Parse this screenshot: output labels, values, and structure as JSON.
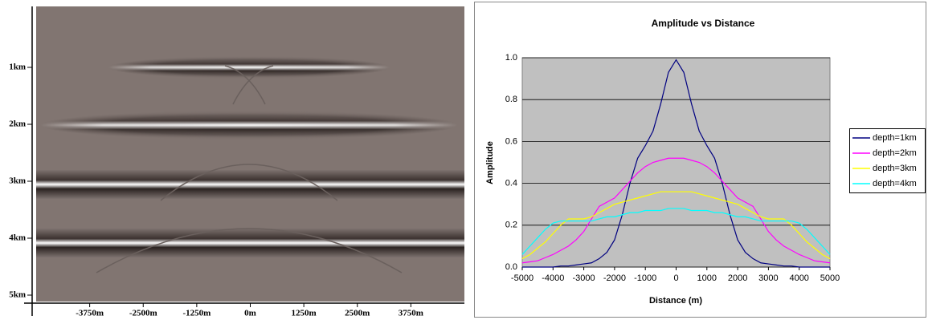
{
  "chart_data": [
    {
      "type": "image",
      "ylim": [
        0,
        5
      ],
      "yticks": [
        {
          "value": 1,
          "label": "1km"
        },
        {
          "value": 2,
          "label": "2km"
        },
        {
          "value": 3,
          "label": "3km"
        },
        {
          "value": 4,
          "label": "4km"
        },
        {
          "value": 5,
          "label": "5km"
        }
      ],
      "xlim": [
        -5000,
        5000
      ],
      "xticks": [
        {
          "value": -3750,
          "label": "-3750m"
        },
        {
          "value": -2500,
          "label": "-2500m"
        },
        {
          "value": -1250,
          "label": "-1250m"
        },
        {
          "value": 0,
          "label": "0m"
        },
        {
          "value": 1250,
          "label": "1250m"
        },
        {
          "value": 2500,
          "label": "2500m"
        },
        {
          "value": 3750,
          "label": "3750m"
        }
      ]
    },
    {
      "type": "line",
      "title": "Amplitude vs Distance",
      "x_label": "Distance (m)",
      "y_label": "Amplitude",
      "xlim": [
        -5000,
        5000
      ],
      "xticks": [
        -5000,
        -4000,
        -3000,
        -2000,
        -1000,
        0,
        1000,
        2000,
        3000,
        4000,
        5000
      ],
      "ylim": [
        0,
        1
      ],
      "yticks": [
        {
          "value": 0,
          "label": "0.0"
        },
        0.2,
        0.4,
        0.6,
        0.8,
        {
          "value": 1,
          "label": "1.0"
        }
      ],
      "grid": true,
      "legend": "right",
      "x": [
        -5000,
        -4750,
        -4500,
        -4250,
        -4000,
        -3750,
        -3500,
        -3250,
        -3000,
        -2750,
        -2500,
        -2250,
        -2000,
        -1750,
        -1500,
        -1250,
        -1000,
        -750,
        -500,
        -250,
        0,
        250,
        500,
        750,
        1000,
        1250,
        1500,
        1750,
        2000,
        2250,
        2500,
        2750,
        3000,
        3250,
        3500,
        3750,
        4000,
        4250,
        4500,
        4750,
        5000
      ],
      "series": [
        {
          "name": "depth=1km",
          "color": "#000080",
          "values": [
            0,
            0,
            0,
            0,
            0,
            0.005,
            0.005,
            0.01,
            0.015,
            0.02,
            0.04,
            0.07,
            0.13,
            0.25,
            0.4,
            0.52,
            0.58,
            0.65,
            0.78,
            0.93,
            0.99,
            0.93,
            0.78,
            0.65,
            0.58,
            0.52,
            0.4,
            0.25,
            0.13,
            0.07,
            0.04,
            0.02,
            0.015,
            0.01,
            0.005,
            0.005,
            0,
            0,
            0,
            0,
            0
          ]
        },
        {
          "name": "depth=2km",
          "color": "#ff00ff",
          "values": [
            0.02,
            0.025,
            0.03,
            0.045,
            0.06,
            0.08,
            0.1,
            0.13,
            0.17,
            0.23,
            0.29,
            0.31,
            0.33,
            0.37,
            0.41,
            0.45,
            0.48,
            0.5,
            0.51,
            0.52,
            0.52,
            0.52,
            0.51,
            0.5,
            0.48,
            0.45,
            0.41,
            0.37,
            0.33,
            0.31,
            0.29,
            0.23,
            0.17,
            0.13,
            0.1,
            0.08,
            0.06,
            0.045,
            0.03,
            0.025,
            0.02
          ]
        },
        {
          "name": "depth=3km",
          "color": "#ffff00",
          "values": [
            0.04,
            0.06,
            0.09,
            0.12,
            0.16,
            0.2,
            0.23,
            0.23,
            0.23,
            0.24,
            0.26,
            0.28,
            0.3,
            0.31,
            0.32,
            0.33,
            0.34,
            0.35,
            0.36,
            0.36,
            0.36,
            0.36,
            0.36,
            0.35,
            0.34,
            0.33,
            0.32,
            0.31,
            0.3,
            0.28,
            0.26,
            0.24,
            0.23,
            0.23,
            0.23,
            0.2,
            0.16,
            0.12,
            0.09,
            0.06,
            0.04
          ]
        },
        {
          "name": "depth=4km",
          "color": "#00ffff",
          "values": [
            0.06,
            0.1,
            0.14,
            0.18,
            0.21,
            0.22,
            0.22,
            0.22,
            0.22,
            0.22,
            0.23,
            0.24,
            0.24,
            0.25,
            0.26,
            0.26,
            0.27,
            0.27,
            0.27,
            0.28,
            0.28,
            0.28,
            0.27,
            0.27,
            0.27,
            0.26,
            0.26,
            0.25,
            0.24,
            0.24,
            0.23,
            0.22,
            0.22,
            0.22,
            0.22,
            0.22,
            0.21,
            0.18,
            0.14,
            0.1,
            0.06
          ]
        }
      ]
    }
  ]
}
